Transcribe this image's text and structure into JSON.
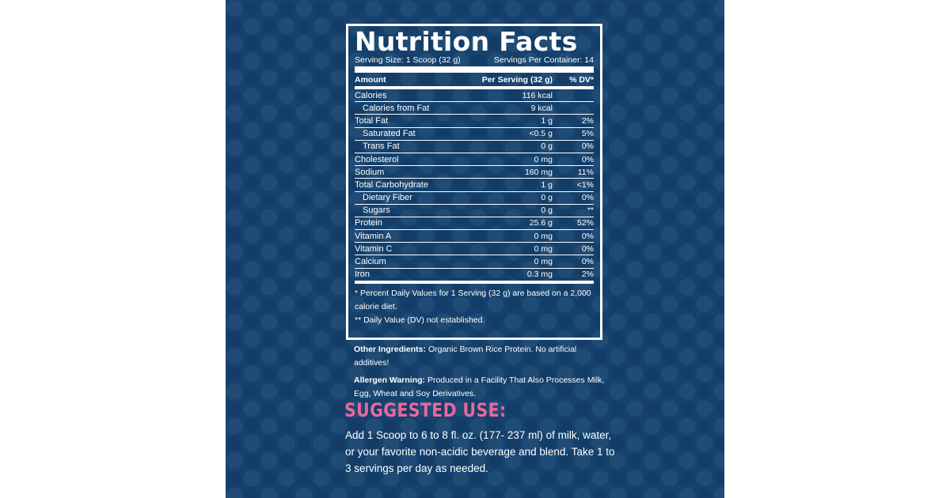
{
  "nutrition": {
    "title": "Nutrition Facts",
    "serving_size": "Serving Size: 1 Scoop (32 g)",
    "servings_per_container": "Servings Per Container: 14",
    "header": {
      "amount": "Amount",
      "per_serving": "Per Serving (32 g)",
      "dv": "% DV*"
    },
    "rows": [
      {
        "name": "Calories",
        "amount": "116 kcal",
        "dv": "",
        "indent": false
      },
      {
        "name": "Calories from Fat",
        "amount": "9 kcal",
        "dv": "",
        "indent": true
      },
      {
        "name": "Total Fat",
        "amount": "1 g",
        "dv": "2%",
        "indent": false
      },
      {
        "name": "Saturated Fat",
        "amount": "<0.5 g",
        "dv": "5%",
        "indent": true
      },
      {
        "name": "Trans Fat",
        "amount": "0 g",
        "dv": "0%",
        "indent": true
      },
      {
        "name": "Cholesterol",
        "amount": "0 mg",
        "dv": "0%",
        "indent": false
      },
      {
        "name": "Sodium",
        "amount": "160 mg",
        "dv": "11%",
        "indent": false
      },
      {
        "name": "Total Carbohydrate",
        "amount": "1 g",
        "dv": "<1%",
        "indent": false
      },
      {
        "name": "Dietary Fiber",
        "amount": "0 g",
        "dv": "0%",
        "indent": true
      },
      {
        "name": "Sugars",
        "amount": "0 g",
        "dv": "**",
        "indent": true
      },
      {
        "name": "Protein",
        "amount": "25.6 g",
        "dv": "52%",
        "indent": false
      },
      {
        "name": "Vitamin A",
        "amount": "0 mg",
        "dv": "0%",
        "indent": false
      },
      {
        "name": "Vitamin C",
        "amount": "0 mg",
        "dv": "0%",
        "indent": false
      },
      {
        "name": "Calcium",
        "amount": "0 mg",
        "dv": "0%",
        "indent": false
      },
      {
        "name": "Iron",
        "amount": "0.3 mg",
        "dv": "2%",
        "indent": false
      }
    ],
    "footnote_1": "* Percent Daily Values for 1 Serving (32 g) are based on a 2,000 calorie diet.",
    "footnote_2": "** Daily Value (DV) not established."
  },
  "other_ingredients": {
    "label": "Other Ingredients:",
    "text": "Organic Brown Rice Protein. No artificial additives!"
  },
  "allergen": {
    "label": "Allergen Warning:",
    "text": "Produced in a Facility That Also Processes Milk, Egg, Wheat and Soy Derivatives."
  },
  "suggested_use": {
    "heading": "SUGGESTED USE:",
    "text": "Add 1 Scoop to 6 to 8 fl. oz. (177- 237 ml) of milk, water, or your favorite non-acidic beverage and blend. Take 1 to 3 servings per day as needed."
  },
  "colors": {
    "background": "#14416d",
    "heading_pink": "#e8699a",
    "text": "#ffffff"
  }
}
